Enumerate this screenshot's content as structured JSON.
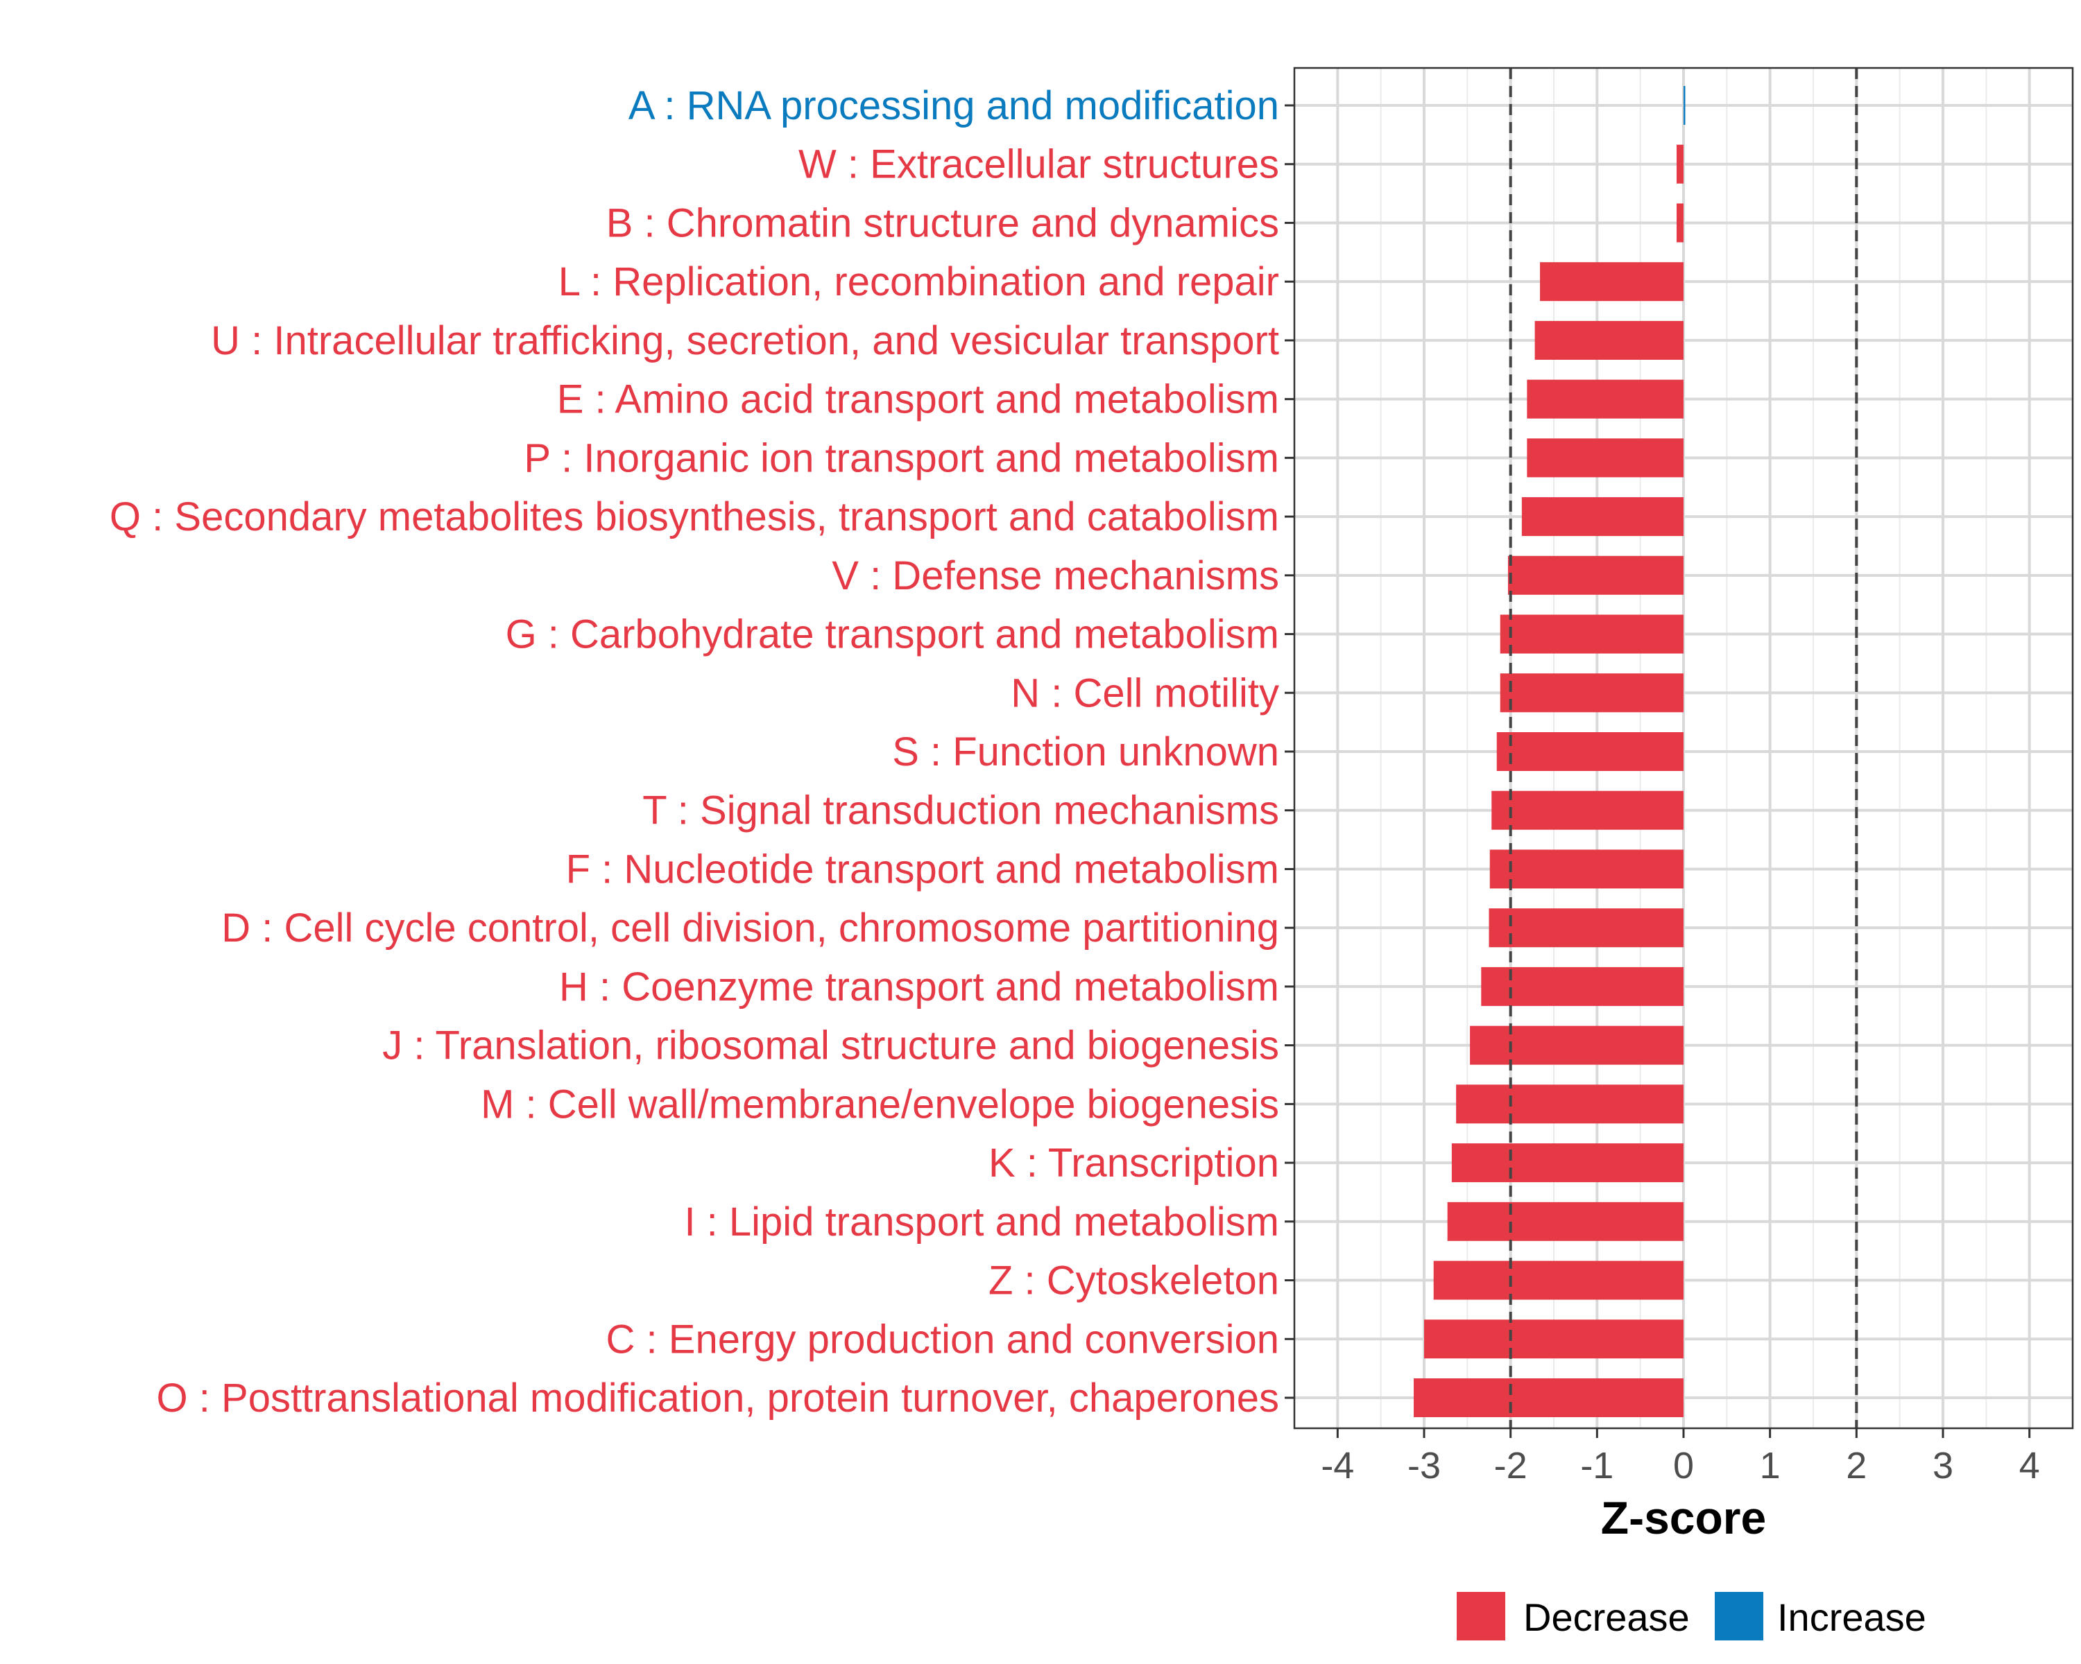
{
  "chart_data": {
    "type": "bar",
    "orientation": "horizontal",
    "title": "",
    "xlabel": "Z-score",
    "ylabel": "",
    "xlim": [
      -4.5,
      4.5
    ],
    "x_ticks": [
      "-4",
      "-3",
      "-2",
      "-1",
      "0",
      "1",
      "2",
      "3",
      "4"
    ],
    "x_tick_values": [
      -4,
      -3,
      -2,
      -1,
      0,
      1,
      2,
      3,
      4
    ],
    "reference_lines": [
      -2,
      2
    ],
    "grid": true,
    "legend_position": "bottom",
    "colors": {
      "Decrease": "#E63946",
      "Increase": "#0A7BBF"
    },
    "legend": [
      {
        "name": "Decrease",
        "color": "#E63946"
      },
      {
        "name": "Increase",
        "color": "#0A7BBF"
      }
    ],
    "categories": [
      "A : RNA processing and modification",
      "W : Extracellular structures",
      "B : Chromatin structure and dynamics",
      "L : Replication, recombination and repair",
      "U : Intracellular trafficking, secretion, and vesicular transport",
      "E : Amino acid transport and metabolism",
      "P : Inorganic ion transport and metabolism",
      "Q : Secondary metabolites biosynthesis, transport and catabolism",
      "V : Defense mechanisms",
      "G : Carbohydrate transport and metabolism",
      "N : Cell motility",
      "S : Function unknown",
      "T : Signal transduction mechanisms",
      "F : Nucleotide transport and metabolism",
      "D : Cell cycle control, cell division, chromosome partitioning",
      "H : Coenzyme transport and metabolism",
      "J : Translation, ribosomal structure and biogenesis",
      "M : Cell wall/membrane/envelope biogenesis",
      "K : Transcription",
      "I : Lipid transport and metabolism",
      "Z : Cytoskeleton",
      "C : Energy production and conversion",
      "O : Posttranslational modification, protein turnover, chaperones"
    ],
    "values": [
      0.02,
      -0.08,
      -0.08,
      -1.66,
      -1.72,
      -1.81,
      -1.81,
      -1.87,
      -2.03,
      -2.12,
      -2.12,
      -2.16,
      -2.22,
      -2.24,
      -2.25,
      -2.34,
      -2.47,
      -2.63,
      -2.68,
      -2.73,
      -2.89,
      -3.0,
      -3.12
    ],
    "direction": [
      "Increase",
      "Decrease",
      "Decrease",
      "Decrease",
      "Decrease",
      "Decrease",
      "Decrease",
      "Decrease",
      "Decrease",
      "Decrease",
      "Decrease",
      "Decrease",
      "Decrease",
      "Decrease",
      "Decrease",
      "Decrease",
      "Decrease",
      "Decrease",
      "Decrease",
      "Decrease",
      "Decrease",
      "Decrease",
      "Decrease"
    ]
  }
}
